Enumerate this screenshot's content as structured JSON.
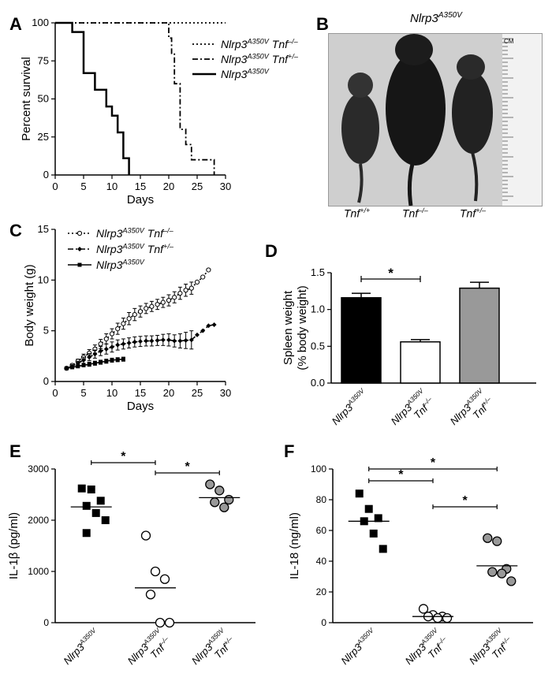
{
  "panels": {
    "A": "A",
    "B": "B",
    "C": "C",
    "D": "D",
    "E": "E",
    "F": "F"
  },
  "panelA": {
    "ylabel": "Percent survival",
    "xlabel": "Days",
    "legend": [
      {
        "gene": "Nlrp3",
        "sup": "A350V",
        "tnf": "Tnf",
        "tnfsup": "–/–"
      },
      {
        "gene": "Nlrp3",
        "sup": "A350V",
        "tnf": "Tnf",
        "tnfsup": "+/–"
      },
      {
        "gene": "Nlrp3",
        "sup": "A350V",
        "tnf": "",
        "tnfsup": ""
      }
    ]
  },
  "panelB": {
    "title_gene": "Nlrp3",
    "title_sup": "A350V",
    "labels": [
      {
        "base": "Tnf",
        "sup": "+/+"
      },
      {
        "base": "Tnf",
        "sup": "–/–"
      },
      {
        "base": "Tnf",
        "sup": "+/–"
      }
    ],
    "ruler_unit": "CM"
  },
  "panelC": {
    "ylabel": "Body weight (g)",
    "xlabel": "Days",
    "legend": [
      {
        "gene": "Nlrp3",
        "sup": "A350V",
        "tnf": "Tnf",
        "tnfsup": "–/–"
      },
      {
        "gene": "Nlrp3",
        "sup": "A350V",
        "tnf": "Tnf",
        "tnfsup": "+/–"
      },
      {
        "gene": "Nlrp3",
        "sup": "A350V",
        "tnf": "",
        "tnfsup": ""
      }
    ]
  },
  "panelD": {
    "ylabel1": "Spleen weight",
    "ylabel2": "(% body weight)",
    "star": "*",
    "cats": [
      {
        "gene": "Nlrp3",
        "sup": "A350V",
        "tnf": "",
        "tnfsup": ""
      },
      {
        "gene": "Nlrp3",
        "sup": "A350V",
        "tnf": "Tnf",
        "tnfsup": "–/–"
      },
      {
        "gene": "Nlrp3",
        "sup": "A350V",
        "tnf": "Tnf",
        "tnfsup": "+/–"
      }
    ]
  },
  "panelE": {
    "ylabel": "IL-1β (pg/ml)",
    "star": "*",
    "cats": [
      {
        "gene": "Nlrp3",
        "sup": "A350V",
        "tnf": "",
        "tnfsup": ""
      },
      {
        "gene": "Nlrp3",
        "sup": "A350V",
        "tnf": "Tnf",
        "tnfsup": "–/–"
      },
      {
        "gene": "Nlrp3",
        "sup": "A350V",
        "tnf": "Tnf",
        "tnfsup": "+/–"
      }
    ]
  },
  "panelF": {
    "ylabel": "IL-18 (ng/ml)",
    "star": "*",
    "cats": [
      {
        "gene": "Nlrp3",
        "sup": "A350V",
        "tnf": "",
        "tnfsup": ""
      },
      {
        "gene": "Nlrp3",
        "sup": "A350V",
        "tnf": "Tnf",
        "tnfsup": "–/–"
      },
      {
        "gene": "Nlrp3",
        "sup": "A350V",
        "tnf": "Tnf",
        "tnfsup": "+/–"
      }
    ]
  },
  "chart_data": [
    {
      "panel": "A",
      "type": "line",
      "step": true,
      "xlabel": "Days",
      "ylabel": "Percent survival",
      "xlim": [
        0,
        30
      ],
      "ylim": [
        0,
        100
      ],
      "xticks": [
        0,
        5,
        10,
        15,
        20,
        25,
        30
      ],
      "yticks": [
        0,
        25,
        50,
        75,
        100
      ],
      "series": [
        {
          "name": "Nlrp3A350V Tnf–/–",
          "style": "dotted",
          "x": [
            0,
            30
          ],
          "y": [
            100,
            100
          ]
        },
        {
          "name": "Nlrp3A350V Tnf+/–",
          "style": "dashdot",
          "x": [
            0,
            20,
            20,
            20.5,
            20.5,
            21,
            21,
            22,
            22,
            23,
            23,
            24,
            24,
            25,
            25,
            28,
            28
          ],
          "y": [
            100,
            100,
            90,
            90,
            80,
            80,
            60,
            60,
            30,
            30,
            20,
            20,
            10,
            10,
            10,
            10,
            0
          ]
        },
        {
          "name": "Nlrp3A350V",
          "style": "solid",
          "x": [
            0,
            3,
            3,
            5,
            5,
            7,
            7,
            9,
            9,
            10,
            10,
            11,
            11,
            12,
            12,
            13,
            13
          ],
          "y": [
            100,
            100,
            94,
            94,
            67,
            67,
            56,
            56,
            45,
            45,
            39,
            39,
            28,
            28,
            11,
            11,
            0
          ]
        }
      ]
    },
    {
      "panel": "C",
      "type": "line",
      "xlabel": "Days",
      "ylabel": "Body weight (g)",
      "xlim": [
        0,
        30
      ],
      "ylim": [
        0,
        15
      ],
      "xticks": [
        0,
        5,
        10,
        15,
        20,
        25,
        30
      ],
      "yticks": [
        0,
        5,
        10,
        15
      ],
      "series": [
        {
          "name": "Nlrp3A350V Tnf–/–",
          "marker": "open-circle",
          "style": "dotted",
          "x": [
            2,
            3,
            4,
            5,
            6,
            7,
            8,
            9,
            10,
            11,
            12,
            13,
            14,
            15,
            16,
            17,
            18,
            19,
            20,
            21,
            22,
            23,
            24,
            25,
            26,
            27
          ],
          "y": [
            1.3,
            1.6,
            2.0,
            2.4,
            2.8,
            3.2,
            3.7,
            4.2,
            4.7,
            5.2,
            5.7,
            6.2,
            6.6,
            6.9,
            7.2,
            7.4,
            7.6,
            7.8,
            8.0,
            8.3,
            8.7,
            9.0,
            9.2,
            9.8,
            10.3,
            11.0
          ],
          "err": [
            0.1,
            0.15,
            0.2,
            0.3,
            0.35,
            0.4,
            0.45,
            0.5,
            0.5,
            0.55,
            0.55,
            0.6,
            0.6,
            0.55,
            0.5,
            0.5,
            0.5,
            0.5,
            0.55,
            0.55,
            0.6,
            0.6,
            0.6,
            0,
            0,
            0
          ]
        },
        {
          "name": "Nlrp3A350V Tnf+/–",
          "marker": "filled-diamond",
          "style": "dashdot",
          "x": [
            2,
            3,
            4,
            5,
            6,
            7,
            8,
            9,
            10,
            11,
            12,
            13,
            14,
            15,
            16,
            17,
            18,
            19,
            20,
            21,
            22,
            23,
            24,
            25,
            26,
            27,
            28
          ],
          "y": [
            1.3,
            1.5,
            1.8,
            2.1,
            2.4,
            2.7,
            3.0,
            3.2,
            3.4,
            3.6,
            3.7,
            3.8,
            3.9,
            3.95,
            4.0,
            4.0,
            4.05,
            4.1,
            4.1,
            4.0,
            4.0,
            4.05,
            4.1,
            4.6,
            5.0,
            5.5,
            5.6
          ],
          "err": [
            0.1,
            0.15,
            0.2,
            0.3,
            0.35,
            0.4,
            0.45,
            0.5,
            0.5,
            0.5,
            0.5,
            0.5,
            0.5,
            0.5,
            0.5,
            0.5,
            0.5,
            0.55,
            0.6,
            0.6,
            0.7,
            0.8,
            0.9,
            0,
            0,
            0,
            0
          ]
        },
        {
          "name": "Nlrp3A350V",
          "marker": "filled-square",
          "style": "solid",
          "x": [
            2,
            3,
            4,
            5,
            6,
            7,
            8,
            9,
            10,
            11,
            12
          ],
          "y": [
            1.3,
            1.4,
            1.5,
            1.6,
            1.7,
            1.8,
            1.9,
            2.0,
            2.1,
            2.15,
            2.2
          ],
          "err": [
            0.1,
            0.1,
            0.15,
            0.15,
            0.2,
            0.2,
            0.2,
            0.2,
            0.2,
            0.2,
            0.2
          ]
        }
      ]
    },
    {
      "panel": "D",
      "type": "bar",
      "ylabel": "Spleen weight (% body weight)",
      "ylim": [
        0,
        1.5
      ],
      "yticks": [
        0.0,
        0.5,
        1.0,
        1.5
      ],
      "categories": [
        "Nlrp3A350V",
        "Nlrp3A350V Tnf–/–",
        "Nlrp3A350V Tnf+/–"
      ],
      "values": [
        1.16,
        0.56,
        1.29
      ],
      "errors": [
        0.06,
        0.03,
        0.08
      ],
      "colors": [
        "#000000",
        "#ffffff",
        "#999999"
      ],
      "significance": [
        [
          0,
          1,
          "*"
        ]
      ]
    },
    {
      "panel": "E",
      "type": "scatter",
      "ylabel": "IL-1β (pg/ml)",
      "ylim": [
        0,
        3000
      ],
      "yticks": [
        0,
        1000,
        2000,
        3000
      ],
      "categories": [
        "Nlrp3A350V",
        "Nlrp3A350V Tnf–/–",
        "Nlrp3A350V Tnf+/–"
      ],
      "points": [
        [
          2620,
          2600,
          2380,
          2280,
          2140,
          2000,
          1750
        ],
        [
          1700,
          1000,
          850,
          550,
          0,
          0
        ],
        [
          2700,
          2580,
          2400,
          2350,
          2250
        ]
      ],
      "means": [
        2260,
        680,
        2440
      ],
      "markers": [
        "filled-square",
        "open-circle",
        "gray-circle"
      ],
      "significance": [
        [
          0,
          1,
          "*"
        ],
        [
          1,
          2,
          "*"
        ]
      ]
    },
    {
      "panel": "F",
      "type": "scatter",
      "ylabel": "IL-18 (ng/ml)",
      "ylim": [
        0,
        100
      ],
      "yticks": [
        0,
        20,
        40,
        60,
        80,
        100
      ],
      "categories": [
        "Nlrp3A350V",
        "Nlrp3A350V Tnf–/–",
        "Nlrp3A350V Tnf+/–"
      ],
      "points": [
        [
          84,
          74,
          68,
          66,
          58,
          48
        ],
        [
          9,
          5,
          4,
          4,
          3,
          3
        ],
        [
          55,
          53,
          35,
          33,
          32,
          27
        ]
      ],
      "means": [
        66,
        4,
        37
      ],
      "markers": [
        "filled-square",
        "open-circle",
        "gray-circle"
      ],
      "significance": [
        [
          0,
          1,
          "*"
        ],
        [
          0,
          2,
          "*"
        ],
        [
          1,
          2,
          "*"
        ]
      ]
    }
  ]
}
